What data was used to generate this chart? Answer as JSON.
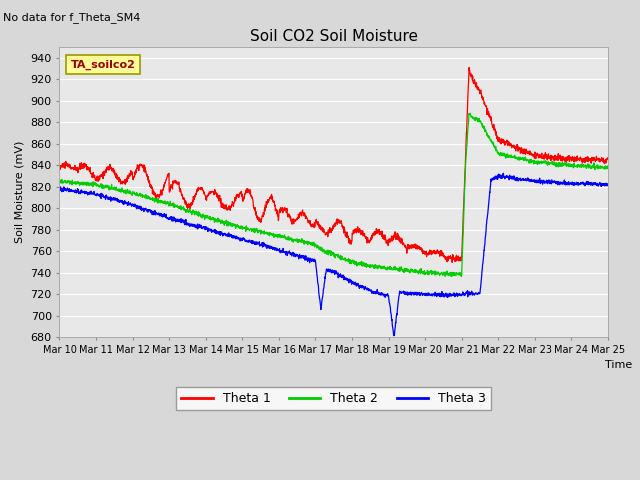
{
  "title": "Soil CO2 Soil Moisture",
  "subtitle": "No data for f_Theta_SM4",
  "xlabel": "Time",
  "ylabel": "Soil Moisture (mV)",
  "ylim": [
    680,
    950
  ],
  "yticks": [
    680,
    700,
    720,
    740,
    760,
    780,
    800,
    820,
    840,
    860,
    880,
    900,
    920,
    940
  ],
  "bg_color": "#d8d8d8",
  "plot_bg_color": "#e8e8e8",
  "legend_label": "TA_soilco2",
  "legend_box_color": "#ffff99",
  "legend_box_edge": "#999900",
  "legend_text_color": "#990000",
  "grid_color": "#ffffff",
  "line_colors": {
    "theta1": "#ff0000",
    "theta2": "#00cc00",
    "theta3": "#0000ff"
  }
}
